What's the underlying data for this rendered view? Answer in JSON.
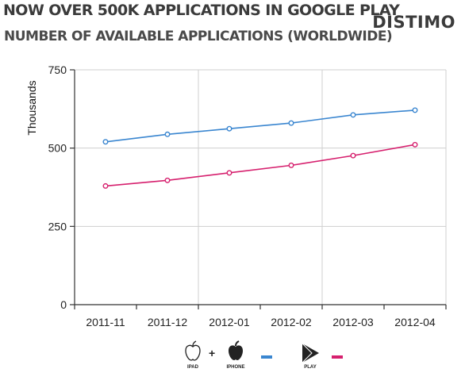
{
  "header": {
    "title": "NOW OVER 500K APPLICATIONS IN GOOGLE PLAY",
    "subtitle": "NUMBER OF AVAILABLE APPLICATIONS (WORLDWIDE)",
    "brand": "DISTIMO"
  },
  "legend": {
    "ipad_label": "IPAD",
    "plus": "+",
    "iphone_label": "IPHONE",
    "play_label": "PLAY"
  },
  "colors": {
    "ios": "#3a86d0",
    "play": "#d6206e",
    "axis": "#333333",
    "grid": "#cfcfcf"
  },
  "chart_data": {
    "type": "line",
    "ylabel": "Thousands",
    "xlabel": "",
    "categories": [
      "2011-11",
      "2011-12",
      "2012-01",
      "2012-02",
      "2012-03",
      "2012-04"
    ],
    "ylim": [
      0,
      750
    ],
    "yticks": [
      0,
      250,
      500,
      750
    ],
    "grid": true,
    "series": [
      {
        "key": "ios",
        "values": [
          520,
          544,
          562,
          580,
          606,
          621
        ]
      },
      {
        "key": "play",
        "values": [
          379,
          397,
          421,
          445,
          476,
          511
        ]
      }
    ]
  }
}
